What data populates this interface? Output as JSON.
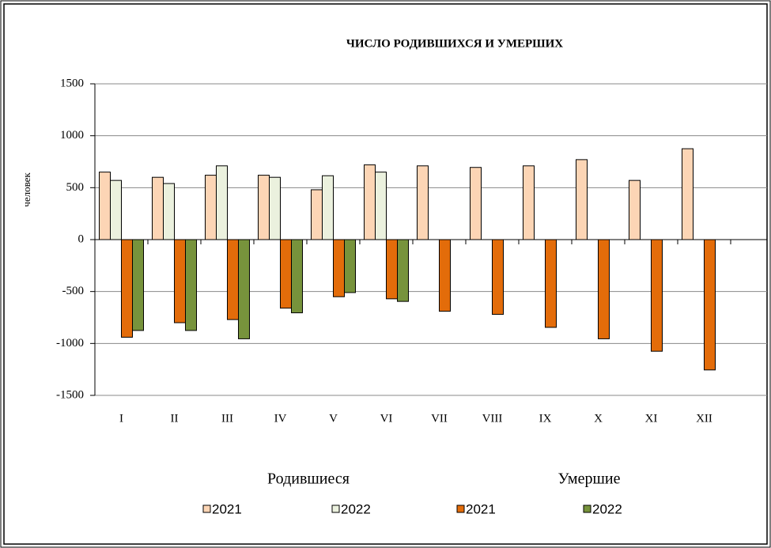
{
  "chart_data": {
    "type": "bar",
    "title": "ЧИСЛО РОДИВШИХСЯ И УМЕРШИХ",
    "y_label": "человек",
    "categories": [
      "I",
      "II",
      "III",
      "IV",
      "V",
      "VI",
      "VII",
      "VIII",
      "IX",
      "X",
      "XI",
      "XII"
    ],
    "legend_groups": [
      "Родившиеся",
      "Умершие"
    ],
    "series": [
      {
        "name": "2021",
        "group": "Родившиеся",
        "color": "#fcd5b5",
        "values": [
          650,
          600,
          620,
          620,
          480,
          720,
          710,
          695,
          710,
          770,
          570,
          875
        ]
      },
      {
        "name": "2022",
        "group": "Родившиеся",
        "color": "#ebf1de",
        "values": [
          570,
          540,
          710,
          600,
          615,
          650,
          null,
          null,
          null,
          null,
          null,
          null
        ]
      },
      {
        "name": "2021",
        "group": "Умершие",
        "color": "#e36c0a",
        "values": [
          -940,
          -800,
          -770,
          -660,
          -550,
          -570,
          -690,
          -720,
          -845,
          -955,
          -1075,
          -1255
        ]
      },
      {
        "name": "2022",
        "group": "Умершие",
        "color": "#77933c",
        "values": [
          -875,
          -875,
          -955,
          -705,
          -510,
          -595,
          null,
          null,
          null,
          null,
          null,
          null
        ]
      }
    ],
    "ylim": [
      -1500,
      1500
    ],
    "yticks": [
      -1500,
      -1000,
      -500,
      0,
      500,
      1000,
      1500
    ],
    "grid": true
  }
}
